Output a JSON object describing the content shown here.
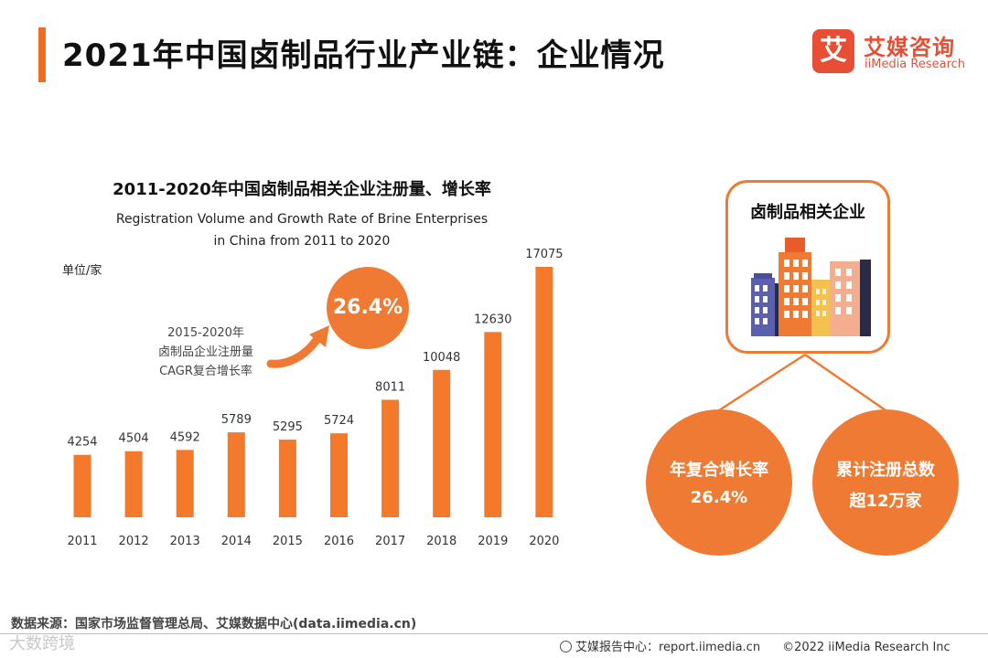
{
  "page": {
    "title": "2021年中国卤制品行业产业链：企业情况"
  },
  "brand": {
    "mark": "艾",
    "name_cn": "艾媒咨询",
    "name_en": "iiMedia Research",
    "accent_color": "#ef7a33",
    "logo_color": "#e84e33"
  },
  "chart_data": {
    "type": "bar",
    "title": "2011-2020年中国卤制品相关企业注册量、增长率",
    "subtitle_en": [
      "Registration Volume and Growth Rate of Brine Enterprises",
      "in China from 2011 to 2020"
    ],
    "unit": "单位/家",
    "categories": [
      "2011",
      "2012",
      "2013",
      "2014",
      "2015",
      "2016",
      "2017",
      "2018",
      "2019",
      "2020"
    ],
    "values": [
      4254,
      4504,
      4592,
      5789,
      5295,
      5724,
      8011,
      10048,
      12630,
      17075
    ],
    "ylim": [
      0,
      17075
    ],
    "xlabel": "",
    "ylabel": "",
    "bar_color": "#f5792a",
    "annotation": {
      "value": "26.4%",
      "note": [
        "2015-2020年",
        "卤制品企业注册量",
        "CAGR复合增长率"
      ]
    }
  },
  "side_panel": {
    "box_title": "卤制品相关企业",
    "illustration": "buildings-icon",
    "stats": [
      {
        "label": "年复合增长率",
        "value": "26.4%"
      },
      {
        "label": "累计注册总数",
        "value": "超12万家"
      }
    ]
  },
  "footer": {
    "source": "数据来源：国家市场监督管理总局、艾媒数据中心(data.iimedia.cn)",
    "report_center": "艾媒报告中心：report.iimedia.cn",
    "copyright": "©2022  iiMedia Research  Inc",
    "watermark": "大数跨境"
  }
}
